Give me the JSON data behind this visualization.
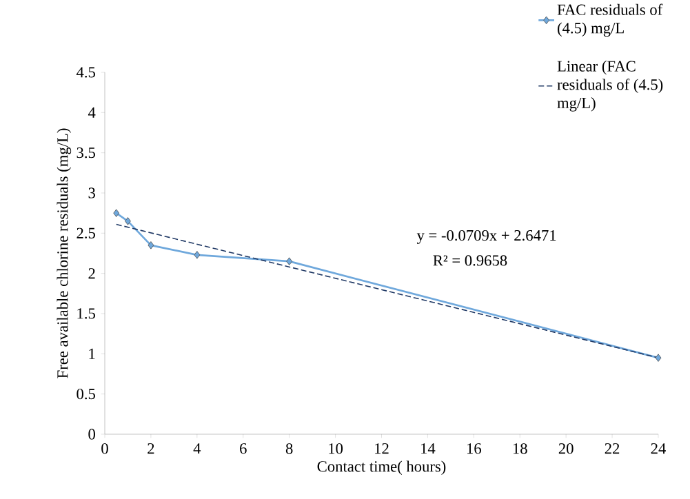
{
  "chart_data": {
    "type": "line",
    "xlabel": "Contact time( hours)",
    "ylabel": "Free available chlorine residuals (mg/L)",
    "xlim": [
      0,
      24
    ],
    "xticks": [
      0,
      2,
      4,
      6,
      8,
      10,
      12,
      14,
      16,
      18,
      20,
      22,
      24
    ],
    "ylim": [
      0,
      4.5
    ],
    "yticks": [
      0,
      0.5,
      1,
      1.5,
      2,
      2.5,
      3,
      3.5,
      4,
      4.5
    ],
    "grid": false,
    "legend": "top right",
    "marker": "diamond",
    "series": [
      {
        "name": "FAC residuals of (4.5) mg/L",
        "color": "#6fa8dc",
        "x": [
          0.5,
          1,
          2,
          4,
          8,
          24
        ],
        "values": [
          2.75,
          2.65,
          2.35,
          2.23,
          2.15,
          0.95
        ],
        "line_style": "solid"
      },
      {
        "name": "Linear (FAC residuals of (4.5) mg/L)",
        "type": "line",
        "color": "#1f3864",
        "x": [
          0.5,
          24
        ],
        "values": [
          2.61,
          0.95
        ],
        "line_style": "dashed",
        "marker": "none"
      }
    ],
    "annotations": [
      "y = -0.0709x + 2.6471",
      "R² = 0.9658"
    ]
  }
}
